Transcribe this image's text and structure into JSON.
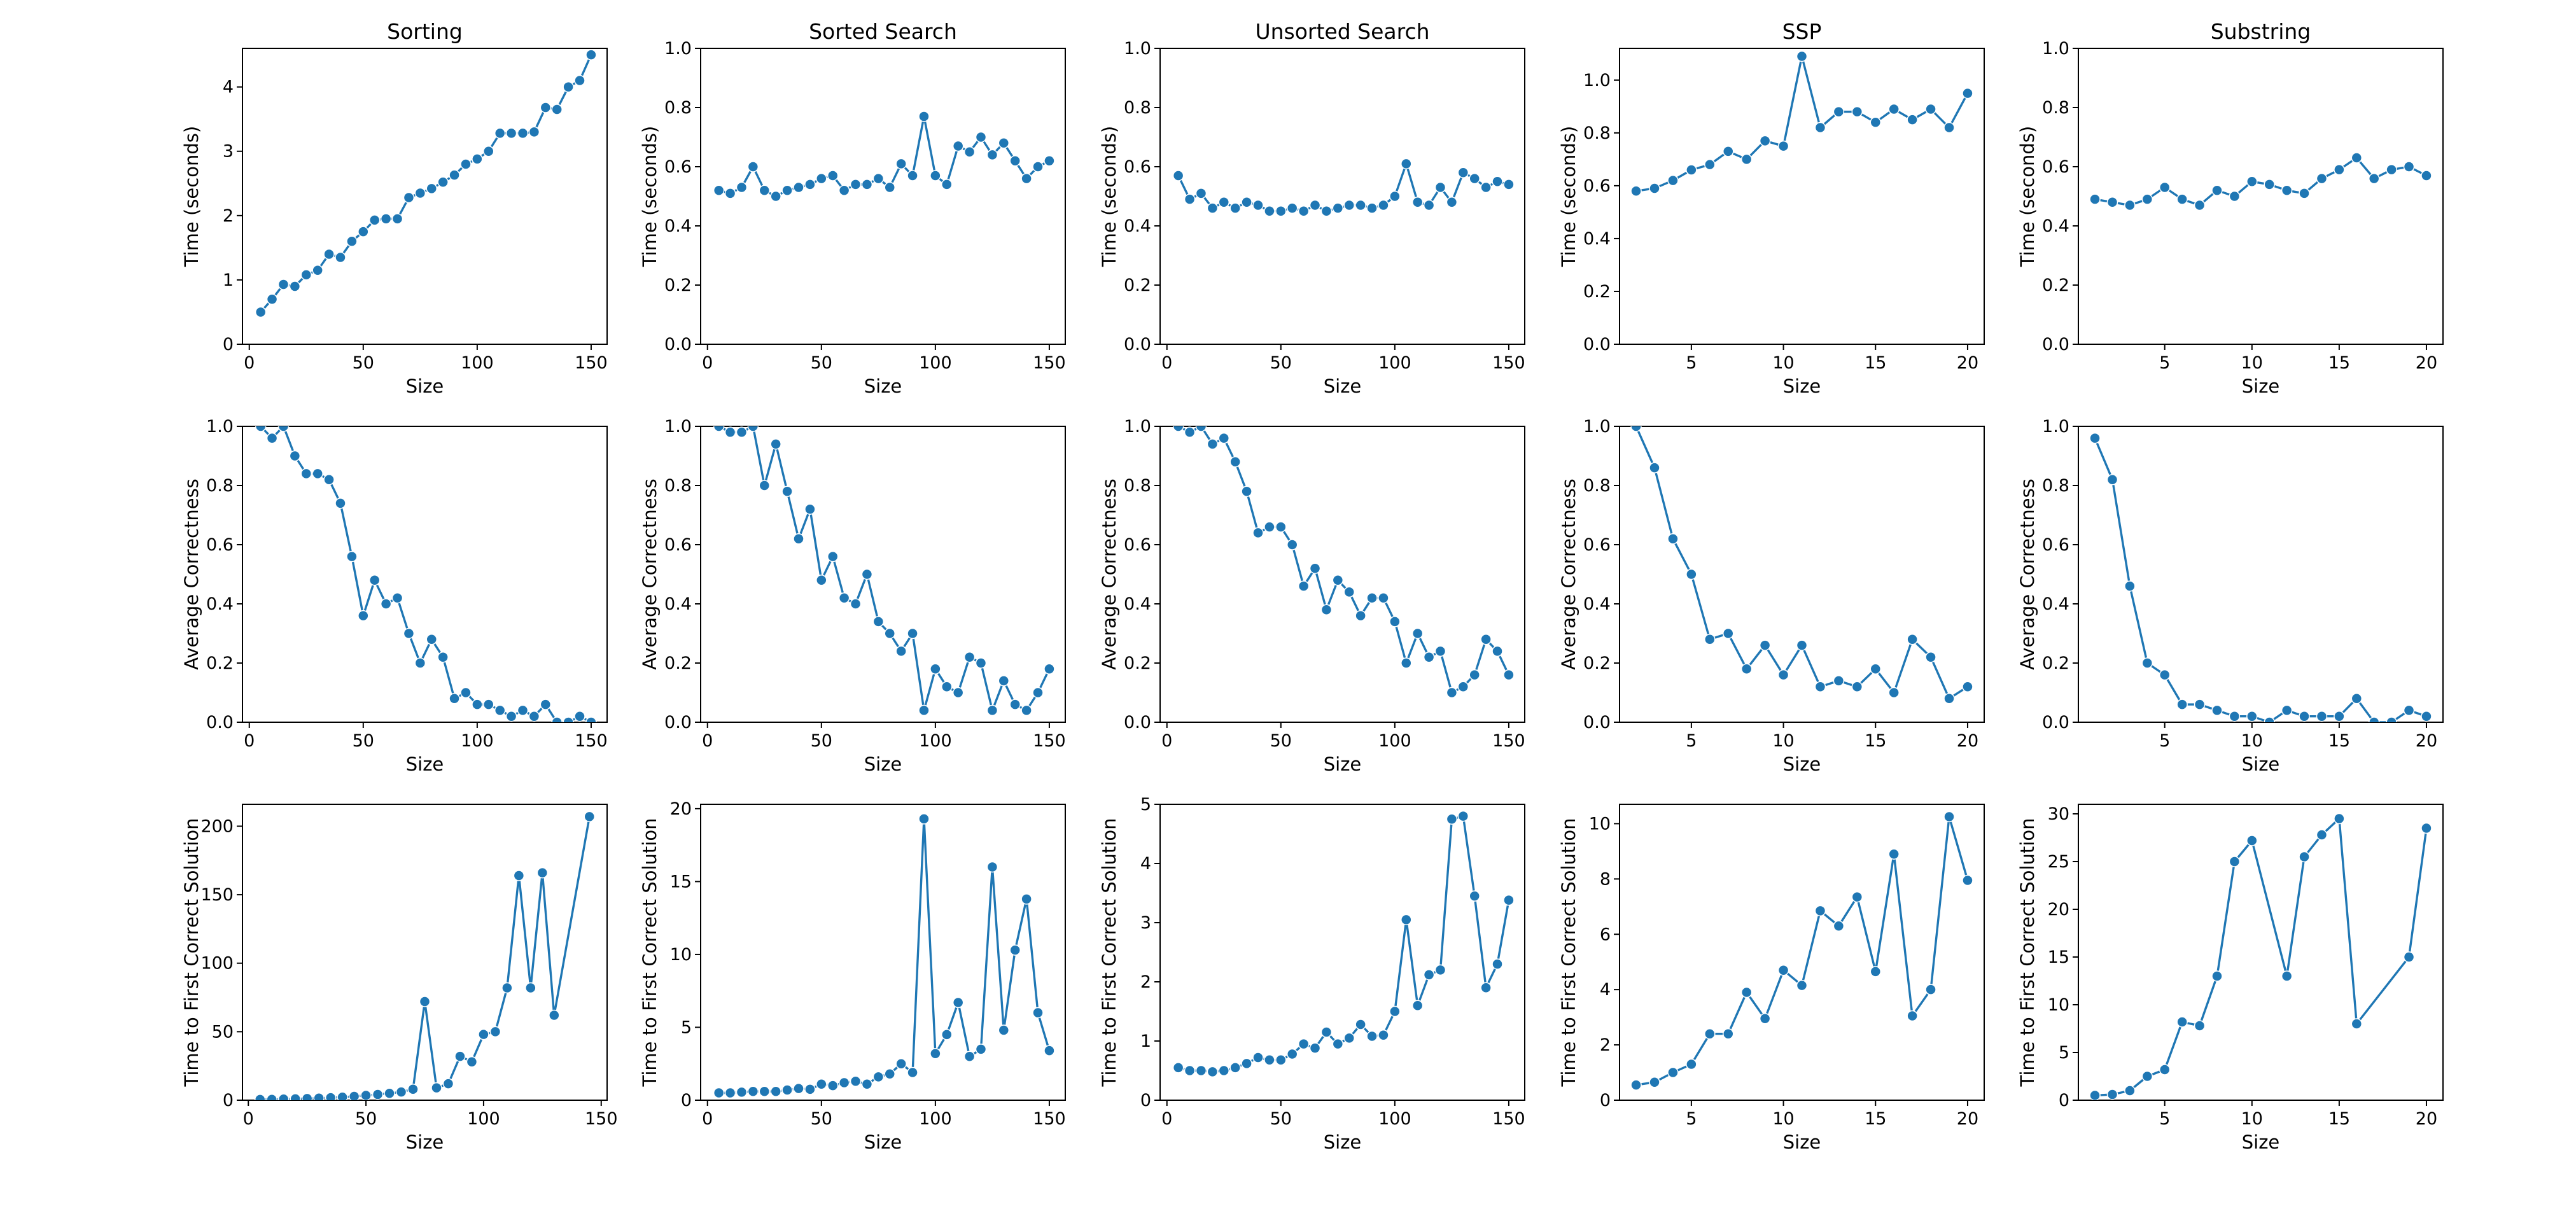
{
  "style": {
    "series_color": "#1f77b4"
  },
  "chart_data": [
    {
      "type": "line",
      "title": "Sorting",
      "xlabel": "Size",
      "ylabel": "Time (seconds)",
      "xlim": [
        -3,
        157
      ],
      "ylim": [
        0,
        4.6
      ],
      "xticks": [
        0,
        50,
        100,
        150
      ],
      "yticks": [
        0,
        1,
        2,
        3,
        4
      ],
      "x": [
        5,
        10,
        15,
        20,
        25,
        30,
        35,
        40,
        45,
        50,
        55,
        60,
        65,
        70,
        75,
        80,
        85,
        90,
        95,
        100,
        105,
        110,
        115,
        120,
        125,
        130,
        135,
        140,
        145,
        150
      ],
      "y": [
        0.5,
        0.7,
        0.93,
        0.9,
        1.08,
        1.15,
        1.4,
        1.35,
        1.6,
        1.75,
        1.93,
        1.95,
        1.95,
        2.28,
        2.35,
        2.42,
        2.52,
        2.63,
        2.8,
        2.88,
        3.0,
        3.28,
        3.28,
        3.28,
        3.3,
        3.68,
        3.65,
        4.0,
        4.1,
        4.5
      ]
    },
    {
      "type": "line",
      "title": "Sorted Search",
      "xlabel": "Size",
      "ylabel": "Time (seconds)",
      "xlim": [
        -3,
        157
      ],
      "ylim": [
        0,
        1.0
      ],
      "xticks": [
        0,
        50,
        100,
        150
      ],
      "yticks": [
        0.0,
        0.2,
        0.4,
        0.6,
        0.8,
        1.0
      ],
      "x": [
        5,
        10,
        15,
        20,
        25,
        30,
        35,
        40,
        45,
        50,
        55,
        60,
        65,
        70,
        75,
        80,
        85,
        90,
        95,
        100,
        105,
        110,
        115,
        120,
        125,
        130,
        135,
        140,
        145,
        150
      ],
      "y": [
        0.52,
        0.51,
        0.53,
        0.6,
        0.52,
        0.5,
        0.52,
        0.53,
        0.54,
        0.56,
        0.57,
        0.52,
        0.54,
        0.54,
        0.56,
        0.53,
        0.61,
        0.57,
        0.77,
        0.57,
        0.54,
        0.67,
        0.65,
        0.7,
        0.64,
        0.68,
        0.62,
        0.56,
        0.6,
        0.62
      ]
    },
    {
      "type": "line",
      "title": "Unsorted Search",
      "xlabel": "Size",
      "ylabel": "Time (seconds)",
      "xlim": [
        -3,
        157
      ],
      "ylim": [
        0,
        1.0
      ],
      "xticks": [
        0,
        50,
        100,
        150
      ],
      "yticks": [
        0.0,
        0.2,
        0.4,
        0.6,
        0.8,
        1.0
      ],
      "x": [
        5,
        10,
        15,
        20,
        25,
        30,
        35,
        40,
        45,
        50,
        55,
        60,
        65,
        70,
        75,
        80,
        85,
        90,
        95,
        100,
        105,
        110,
        115,
        120,
        125,
        130,
        135,
        140,
        145,
        150
      ],
      "y": [
        0.57,
        0.49,
        0.51,
        0.46,
        0.48,
        0.46,
        0.48,
        0.47,
        0.45,
        0.45,
        0.46,
        0.45,
        0.47,
        0.45,
        0.46,
        0.47,
        0.47,
        0.46,
        0.47,
        0.5,
        0.61,
        0.48,
        0.47,
        0.53,
        0.48,
        0.58,
        0.56,
        0.53,
        0.55,
        0.54
      ]
    },
    {
      "type": "line",
      "title": "SSP",
      "xlabel": "Size",
      "ylabel": "Time (seconds)",
      "xlim": [
        1.1,
        20.9
      ],
      "ylim": [
        0,
        1.12
      ],
      "xticks": [
        5,
        10,
        15,
        20
      ],
      "yticks": [
        0.0,
        0.2,
        0.4,
        0.6,
        0.8,
        1.0
      ],
      "x": [
        2,
        3,
        4,
        5,
        6,
        7,
        8,
        9,
        10,
        11,
        12,
        13,
        14,
        15,
        16,
        17,
        18,
        19,
        20
      ],
      "y": [
        0.58,
        0.59,
        0.62,
        0.66,
        0.68,
        0.73,
        0.7,
        0.77,
        0.75,
        1.09,
        0.82,
        0.88,
        0.88,
        0.84,
        0.89,
        0.85,
        0.89,
        0.82,
        0.95
      ]
    },
    {
      "type": "line",
      "title": "Substring",
      "xlabel": "Size",
      "ylabel": "Time (seconds)",
      "xlim": [
        0.05,
        20.95
      ],
      "ylim": [
        0,
        1.0
      ],
      "xticks": [
        5,
        10,
        15,
        20
      ],
      "yticks": [
        0.0,
        0.2,
        0.4,
        0.6,
        0.8,
        1.0
      ],
      "x": [
        1,
        2,
        3,
        4,
        5,
        6,
        7,
        8,
        9,
        10,
        11,
        12,
        13,
        14,
        15,
        16,
        17,
        18,
        19,
        20
      ],
      "y": [
        0.49,
        0.48,
        0.47,
        0.49,
        0.53,
        0.49,
        0.47,
        0.52,
        0.5,
        0.55,
        0.54,
        0.52,
        0.51,
        0.56,
        0.59,
        0.63,
        0.56,
        0.59,
        0.6,
        0.57
      ]
    },
    {
      "type": "line",
      "title": "",
      "xlabel": "Size",
      "ylabel": "Average Correctness",
      "xlim": [
        -3,
        157
      ],
      "ylim": [
        0,
        1.0
      ],
      "xticks": [
        0,
        50,
        100,
        150
      ],
      "yticks": [
        0.0,
        0.2,
        0.4,
        0.6,
        0.8,
        1.0
      ],
      "x": [
        5,
        10,
        15,
        20,
        25,
        30,
        35,
        40,
        45,
        50,
        55,
        60,
        65,
        70,
        75,
        80,
        85,
        90,
        95,
        100,
        105,
        110,
        115,
        120,
        125,
        130,
        135,
        140,
        145,
        150
      ],
      "y": [
        1.0,
        0.96,
        1.0,
        0.9,
        0.84,
        0.84,
        0.82,
        0.74,
        0.56,
        0.36,
        0.48,
        0.4,
        0.42,
        0.3,
        0.2,
        0.28,
        0.22,
        0.08,
        0.1,
        0.06,
        0.06,
        0.04,
        0.02,
        0.04,
        0.02,
        0.06,
        0.0,
        0.0,
        0.02,
        0.0
      ]
    },
    {
      "type": "line",
      "title": "",
      "xlabel": "Size",
      "ylabel": "Average Correctness",
      "xlim": [
        -3,
        157
      ],
      "ylim": [
        0,
        1.0
      ],
      "xticks": [
        0,
        50,
        100,
        150
      ],
      "yticks": [
        0.0,
        0.2,
        0.4,
        0.6,
        0.8,
        1.0
      ],
      "x": [
        5,
        10,
        15,
        20,
        25,
        30,
        35,
        40,
        45,
        50,
        55,
        60,
        65,
        70,
        75,
        80,
        85,
        90,
        95,
        100,
        105,
        110,
        115,
        120,
        125,
        130,
        135,
        140,
        145,
        150
      ],
      "y": [
        1.0,
        0.98,
        0.98,
        1.0,
        0.8,
        0.94,
        0.78,
        0.62,
        0.72,
        0.48,
        0.56,
        0.42,
        0.4,
        0.5,
        0.34,
        0.3,
        0.24,
        0.3,
        0.04,
        0.18,
        0.12,
        0.1,
        0.22,
        0.2,
        0.04,
        0.14,
        0.06,
        0.04,
        0.1,
        0.18
      ]
    },
    {
      "type": "line",
      "title": "",
      "xlabel": "Size",
      "ylabel": "Average Correctness",
      "xlim": [
        -3,
        157
      ],
      "ylim": [
        0,
        1.0
      ],
      "xticks": [
        0,
        50,
        100,
        150
      ],
      "yticks": [
        0.0,
        0.2,
        0.4,
        0.6,
        0.8,
        1.0
      ],
      "x": [
        5,
        10,
        15,
        20,
        25,
        30,
        35,
        40,
        45,
        50,
        55,
        60,
        65,
        70,
        75,
        80,
        85,
        90,
        95,
        100,
        105,
        110,
        115,
        120,
        125,
        130,
        135,
        140,
        145,
        150
      ],
      "y": [
        1.0,
        0.98,
        1.0,
        0.94,
        0.96,
        0.88,
        0.78,
        0.64,
        0.66,
        0.66,
        0.6,
        0.46,
        0.52,
        0.38,
        0.48,
        0.44,
        0.36,
        0.42,
        0.42,
        0.34,
        0.2,
        0.3,
        0.22,
        0.24,
        0.1,
        0.12,
        0.16,
        0.28,
        0.24,
        0.16
      ]
    },
    {
      "type": "line",
      "title": "",
      "xlabel": "Size",
      "ylabel": "Average Correctness",
      "xlim": [
        1.1,
        20.9
      ],
      "ylim": [
        0,
        1.0
      ],
      "xticks": [
        5,
        10,
        15,
        20
      ],
      "yticks": [
        0.0,
        0.2,
        0.4,
        0.6,
        0.8,
        1.0
      ],
      "x": [
        2,
        3,
        4,
        5,
        6,
        7,
        8,
        9,
        10,
        11,
        12,
        13,
        14,
        15,
        16,
        17,
        18,
        19,
        20
      ],
      "y": [
        1.0,
        0.86,
        0.62,
        0.5,
        0.28,
        0.3,
        0.18,
        0.26,
        0.16,
        0.26,
        0.12,
        0.14,
        0.12,
        0.18,
        0.1,
        0.28,
        0.22,
        0.08,
        0.12
      ]
    },
    {
      "type": "line",
      "title": "",
      "xlabel": "Size",
      "ylabel": "Average Correctness",
      "xlim": [
        0.05,
        20.95
      ],
      "ylim": [
        0,
        1.0
      ],
      "xticks": [
        5,
        10,
        15,
        20
      ],
      "yticks": [
        0.0,
        0.2,
        0.4,
        0.6,
        0.8,
        1.0
      ],
      "x": [
        1,
        2,
        3,
        4,
        5,
        6,
        7,
        8,
        9,
        10,
        11,
        12,
        13,
        14,
        15,
        16,
        17,
        18,
        19,
        20
      ],
      "y": [
        0.96,
        0.82,
        0.46,
        0.2,
        0.16,
        0.06,
        0.06,
        0.04,
        0.02,
        0.02,
        0.0,
        0.04,
        0.02,
        0.02,
        0.02,
        0.08,
        0.0,
        0.0,
        0.04,
        0.02
      ]
    },
    {
      "type": "line",
      "title": "",
      "xlabel": "Size",
      "ylabel": "Time to First Correct Solution",
      "xlim": [
        -2.5,
        152.5
      ],
      "ylim": [
        0,
        216
      ],
      "xticks": [
        0,
        50,
        100,
        150
      ],
      "yticks": [
        0,
        50,
        100,
        150,
        200
      ],
      "x": [
        5,
        10,
        15,
        20,
        25,
        30,
        35,
        40,
        45,
        50,
        55,
        60,
        65,
        70,
        75,
        80,
        85,
        90,
        95,
        100,
        105,
        110,
        115,
        120,
        125,
        130,
        145
      ],
      "y": [
        0.5,
        0.6,
        0.8,
        1.0,
        1.2,
        1.5,
        1.8,
        2.2,
        2.8,
        3.5,
        4.2,
        5.0,
        6.0,
        8.0,
        72,
        9.0,
        12,
        32,
        28,
        48,
        50,
        82,
        164,
        82,
        166,
        62,
        207
      ]
    },
    {
      "type": "line",
      "title": "",
      "xlabel": "Size",
      "ylabel": "Time to First Correct Solution",
      "xlim": [
        -3,
        157
      ],
      "ylim": [
        0,
        20.3
      ],
      "xticks": [
        0,
        50,
        100,
        150
      ],
      "yticks": [
        0,
        5,
        10,
        15,
        20
      ],
      "x": [
        5,
        10,
        15,
        20,
        25,
        30,
        35,
        40,
        45,
        50,
        55,
        60,
        65,
        70,
        75,
        80,
        85,
        90,
        95,
        100,
        105,
        110,
        115,
        120,
        125,
        130,
        135,
        140,
        145,
        150
      ],
      "y": [
        0.5,
        0.5,
        0.55,
        0.6,
        0.6,
        0.6,
        0.7,
        0.8,
        0.75,
        1.1,
        1.0,
        1.2,
        1.3,
        1.1,
        1.6,
        1.8,
        2.5,
        1.9,
        19.3,
        3.2,
        4.5,
        6.7,
        3.0,
        3.5,
        16.0,
        4.8,
        10.3,
        13.8,
        6.0,
        3.4
      ]
    },
    {
      "type": "line",
      "title": "",
      "xlabel": "Size",
      "ylabel": "Time to First Correct Solution",
      "xlim": [
        -3,
        157
      ],
      "ylim": [
        0,
        5.0
      ],
      "xticks": [
        0,
        50,
        100,
        150
      ],
      "yticks": [
        0,
        1,
        2,
        3,
        4,
        5
      ],
      "x": [
        5,
        10,
        15,
        20,
        25,
        30,
        35,
        40,
        45,
        50,
        55,
        60,
        65,
        70,
        75,
        80,
        85,
        90,
        95,
        100,
        105,
        110,
        115,
        120,
        125,
        130,
        135,
        140,
        145,
        150
      ],
      "y": [
        0.55,
        0.5,
        0.5,
        0.48,
        0.5,
        0.55,
        0.62,
        0.72,
        0.68,
        0.68,
        0.78,
        0.95,
        0.88,
        1.15,
        0.95,
        1.05,
        1.28,
        1.08,
        1.1,
        1.5,
        3.05,
        1.6,
        2.12,
        2.2,
        4.75,
        4.8,
        3.45,
        1.9,
        2.3,
        3.38
      ]
    },
    {
      "type": "line",
      "title": "",
      "xlabel": "Size",
      "ylabel": "Time to First Correct Solution",
      "xlim": [
        1.1,
        20.9
      ],
      "ylim": [
        0,
        10.7
      ],
      "xticks": [
        5,
        10,
        15,
        20
      ],
      "yticks": [
        0,
        2,
        4,
        6,
        8,
        10
      ],
      "x": [
        2,
        3,
        4,
        5,
        6,
        7,
        8,
        9,
        10,
        11,
        12,
        13,
        14,
        15,
        16,
        17,
        18,
        19,
        20
      ],
      "y": [
        0.55,
        0.65,
        1.0,
        1.3,
        2.4,
        2.4,
        3.9,
        2.95,
        4.7,
        4.15,
        6.85,
        6.3,
        7.35,
        4.65,
        8.9,
        3.05,
        4.0,
        10.25,
        7.95
      ]
    },
    {
      "type": "line",
      "title": "",
      "xlabel": "Size",
      "ylabel": "Time to First Correct Solution",
      "xlim": [
        0.05,
        20.95
      ],
      "ylim": [
        0,
        31
      ],
      "xticks": [
        5,
        10,
        15,
        20
      ],
      "yticks": [
        0,
        5,
        10,
        15,
        20,
        25,
        30
      ],
      "x": [
        1,
        2,
        3,
        4,
        5,
        6,
        7,
        8,
        9,
        10,
        12,
        13,
        14,
        15,
        16,
        19,
        20
      ],
      "y": [
        0.5,
        0.6,
        1.0,
        2.5,
        3.2,
        8.2,
        7.8,
        13,
        25,
        27.2,
        13,
        25.5,
        27.8,
        29.5,
        8.0,
        15.0,
        28.5
      ]
    }
  ]
}
